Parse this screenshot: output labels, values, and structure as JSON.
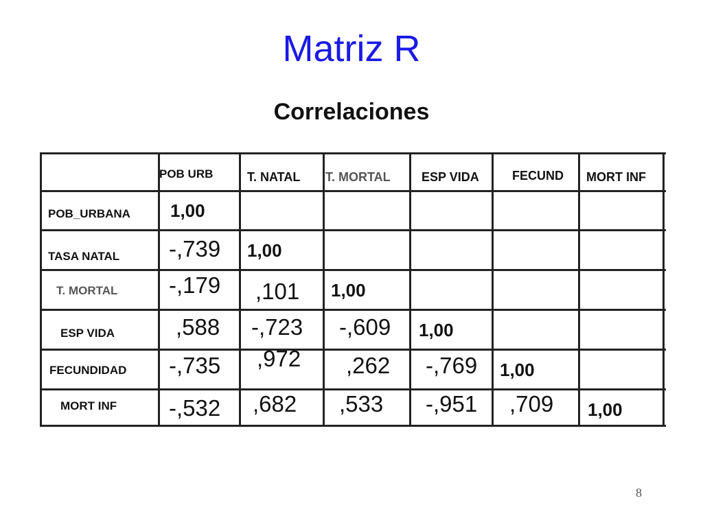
{
  "title": "Matriz R",
  "subtitle": "Correlaciones",
  "columns": [
    "POB  URB",
    "T. NATAL",
    "T. MORTAL",
    "ESP VIDA",
    "FECUND",
    "MORT INF"
  ],
  "rows": [
    "POB_URBANA",
    "TASA NATAL",
    "T. MORTAL",
    "ESP VIDA",
    "FECUNDIDAD",
    "MORT INF"
  ],
  "cells": [
    [
      "1,00"
    ],
    [
      "-,739",
      "1,00"
    ],
    [
      "-,179",
      ",101",
      "1,00"
    ],
    [
      ",588",
      "-,723",
      "-,609",
      "1,00"
    ],
    [
      "-,735",
      ",972",
      ",262",
      "-,769",
      "1,00"
    ],
    [
      "-,532",
      ",682",
      ",533",
      "-,951",
      ",709",
      "1,00"
    ]
  ],
  "page_number": "8"
}
